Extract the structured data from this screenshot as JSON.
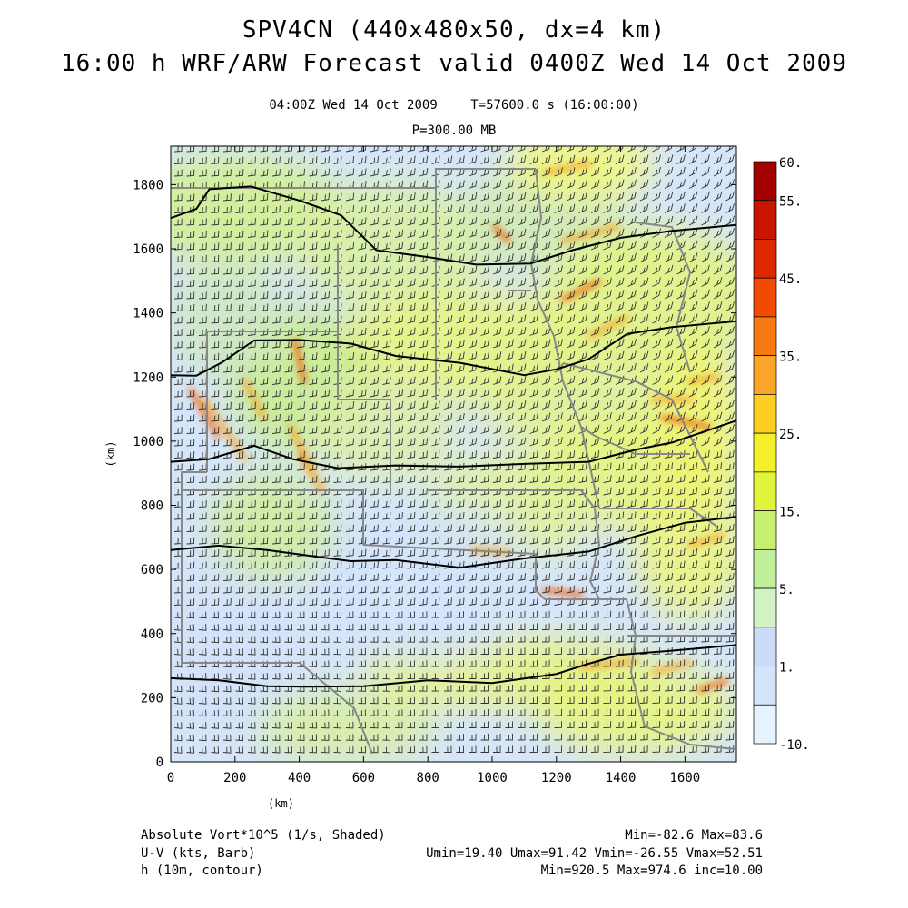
{
  "title": {
    "line1": "SPV4CN (440x480x50, dx=4 km)",
    "line2": "16:00 h WRF/ARW Forecast valid 0400Z Wed 14 Oct 2009"
  },
  "subtitle": {
    "valid_time": "04:00Z Wed 14 Oct 2009",
    "model_time": "T=57600.0 s (16:00:00)",
    "level": "P=300.00 MB"
  },
  "chart_data": {
    "type": "heatmap",
    "xlabel": "(km)",
    "ylabel": "(km)",
    "xlim": [
      0,
      1760
    ],
    "ylim": [
      0,
      1920
    ],
    "x_ticks": [
      "0",
      "200",
      "400",
      "600",
      "800",
      "1000",
      "1200",
      "1400",
      "1600"
    ],
    "y_ticks": [
      "0",
      "200",
      "400",
      "600",
      "800",
      "1000",
      "1200",
      "1400",
      "1600",
      "1800"
    ],
    "colorbar": {
      "labels": [
        "60.",
        "55.",
        "45.",
        "35.",
        "25.",
        "15.",
        "5.",
        "1.",
        "-10."
      ],
      "colors": [
        "#a50000",
        "#c81400",
        "#e02800",
        "#f04b00",
        "#f77a10",
        "#fba52a",
        "#fecf22",
        "#f4f02a",
        "#e0f43c",
        "#c8f070",
        "#c0f09c",
        "#d2f4c4",
        "#ccdcf8",
        "#d4e4fb",
        "#e6f2fe"
      ]
    },
    "contour_lines_km": [
      [
        [
          0,
          1700
        ],
        [
          80,
          1720
        ],
        [
          120,
          1790
        ],
        [
          250,
          1790
        ],
        [
          400,
          1755
        ],
        [
          530,
          1700
        ],
        [
          640,
          1600
        ],
        [
          800,
          1570
        ],
        [
          950,
          1555
        ],
        [
          1120,
          1550
        ],
        [
          1250,
          1600
        ],
        [
          1400,
          1630
        ],
        [
          1560,
          1660
        ],
        [
          1760,
          1670
        ]
      ],
      [
        [
          0,
          1210
        ],
        [
          80,
          1200
        ],
        [
          160,
          1250
        ],
        [
          260,
          1310
        ],
        [
          400,
          1320
        ],
        [
          560,
          1300
        ],
        [
          700,
          1270
        ],
        [
          900,
          1240
        ],
        [
          1100,
          1210
        ],
        [
          1200,
          1220
        ],
        [
          1300,
          1260
        ],
        [
          1420,
          1330
        ],
        [
          1560,
          1360
        ],
        [
          1760,
          1370
        ]
      ],
      [
        [
          0,
          940
        ],
        [
          120,
          940
        ],
        [
          260,
          990
        ],
        [
          380,
          940
        ],
        [
          520,
          920
        ],
        [
          700,
          920
        ],
        [
          900,
          925
        ],
        [
          1100,
          925
        ],
        [
          1300,
          940
        ],
        [
          1450,
          970
        ],
        [
          1560,
          1000
        ],
        [
          1760,
          1060
        ]
      ],
      [
        [
          0,
          665
        ],
        [
          150,
          670
        ],
        [
          300,
          665
        ],
        [
          420,
          640
        ],
        [
          560,
          630
        ],
        [
          700,
          625
        ],
        [
          900,
          610
        ],
        [
          1100,
          630
        ],
        [
          1300,
          660
        ],
        [
          1450,
          700
        ],
        [
          1600,
          750
        ],
        [
          1760,
          760
        ]
      ],
      [
        [
          0,
          265
        ],
        [
          150,
          250
        ],
        [
          300,
          240
        ],
        [
          420,
          230
        ],
        [
          600,
          240
        ],
        [
          800,
          250
        ],
        [
          1000,
          250
        ],
        [
          1200,
          270
        ],
        [
          1300,
          310
        ],
        [
          1400,
          330
        ],
        [
          1550,
          350
        ],
        [
          1760,
          360
        ]
      ]
    ]
  },
  "footer": {
    "field1": "Absolute Vort*10^5 (1/s, Shaded)",
    "field2": "U-V (kts, Barb)",
    "field3": "h (10m, contour)",
    "stats1": "Min=-82.6 Max=83.6",
    "stats2": "Umin=19.40 Umax=91.42 Vmin=-26.55 Vmax=52.51",
    "stats3": "Min=920.5 Max=974.6 inc=10.00"
  }
}
